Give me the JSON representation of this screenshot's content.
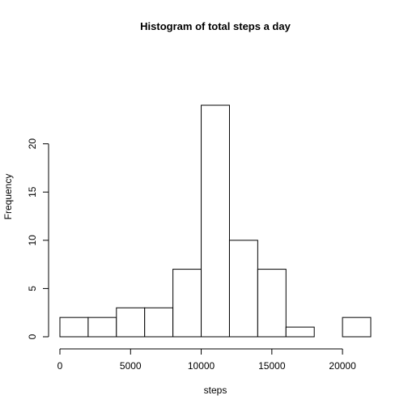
{
  "chart_data": {
    "type": "histogram",
    "title": "Histogram of total steps a day",
    "xlabel": "steps",
    "ylabel": "Frequency",
    "bins": [
      {
        "start": 0,
        "end": 2000,
        "count": 2
      },
      {
        "start": 2000,
        "end": 4000,
        "count": 2
      },
      {
        "start": 4000,
        "end": 6000,
        "count": 3
      },
      {
        "start": 6000,
        "end": 8000,
        "count": 3
      },
      {
        "start": 8000,
        "end": 10000,
        "count": 7
      },
      {
        "start": 10000,
        "end": 12000,
        "count": 24
      },
      {
        "start": 12000,
        "end": 14000,
        "count": 10
      },
      {
        "start": 14000,
        "end": 16000,
        "count": 7
      },
      {
        "start": 16000,
        "end": 18000,
        "count": 1
      },
      {
        "start": 18000,
        "end": 20000,
        "count": 0
      },
      {
        "start": 20000,
        "end": 22000,
        "count": 2
      }
    ],
    "xlim": [
      0,
      22000
    ],
    "ylim": [
      0,
      24
    ],
    "x_ticks": [
      0,
      5000,
      10000,
      15000,
      20000
    ],
    "y_ticks": [
      0,
      5,
      10,
      15,
      20
    ],
    "grid": false,
    "bar_fill": "#ffffff",
    "bar_stroke": "#000000"
  }
}
